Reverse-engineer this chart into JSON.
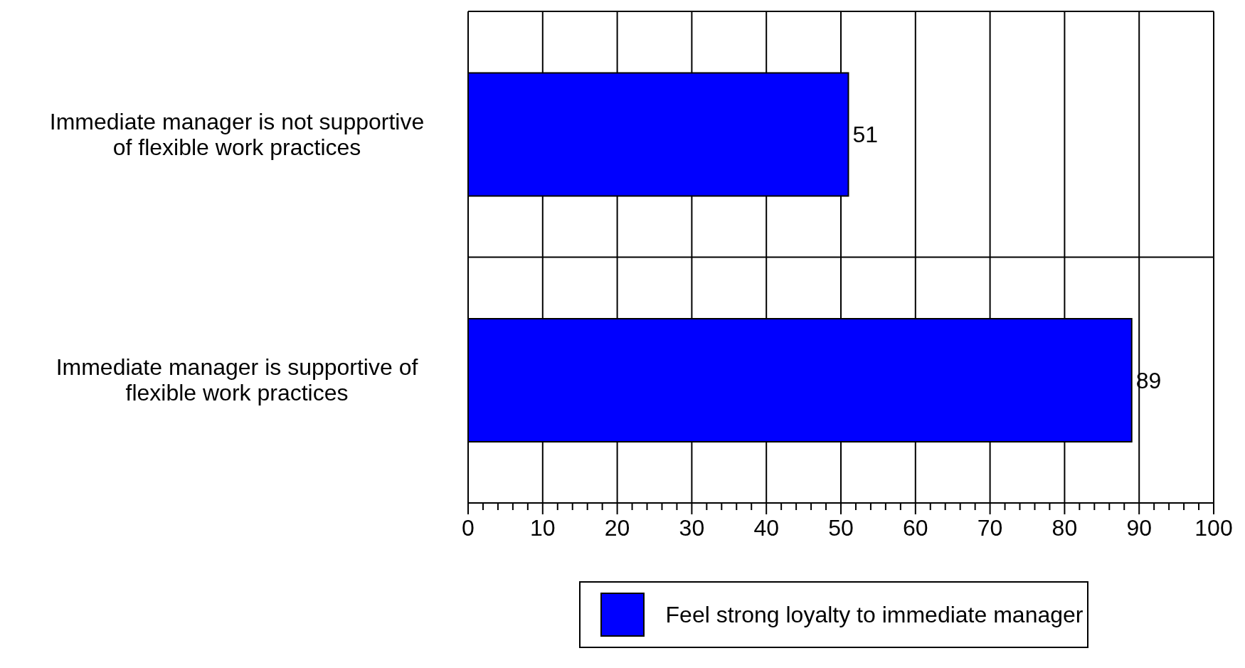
{
  "chart_data": {
    "type": "bar",
    "orientation": "horizontal",
    "categories": [
      "Immediate manager is not supportive of flexible work practices",
      "Immediate manager is supportive of flexible work practices"
    ],
    "series": [
      {
        "name": "Feel strong loyalty to immediate manager",
        "color": "#0000ff",
        "values": [
          51,
          89
        ]
      }
    ],
    "xlim": [
      0,
      100
    ],
    "xticks": [
      0,
      {
        "value": 2,
        "label": null
      },
      {
        "value": 4,
        "label": null
      },
      {
        "value": 6,
        "label": null
      },
      {
        "value": 8,
        "label": null
      },
      10,
      {
        "value": 12,
        "label": null
      },
      {
        "value": 14,
        "label": null
      },
      {
        "value": 16,
        "label": null
      },
      {
        "value": 18,
        "label": null
      },
      20,
      {
        "value": 22,
        "label": null
      },
      {
        "value": 24,
        "label": null
      },
      {
        "value": 26,
        "label": null
      },
      {
        "value": 28,
        "label": null
      },
      30,
      {
        "value": 32,
        "label": null
      },
      {
        "value": 34,
        "label": null
      },
      {
        "value": 36,
        "label": null
      },
      {
        "value": 38,
        "label": null
      },
      40,
      {
        "value": 42,
        "label": null
      },
      {
        "value": 44,
        "label": null
      },
      {
        "value": 46,
        "label": null
      },
      {
        "value": 48,
        "label": null
      },
      50,
      {
        "value": 52,
        "label": null
      },
      {
        "value": 54,
        "label": null
      },
      {
        "value": 56,
        "label": null
      },
      {
        "value": 58,
        "label": null
      },
      60,
      {
        "value": 62,
        "label": null
      },
      {
        "value": 64,
        "label": null
      },
      {
        "value": 66,
        "label": null
      },
      {
        "value": 68,
        "label": null
      },
      70,
      {
        "value": 72,
        "label": null
      },
      {
        "value": 74,
        "label": null
      },
      {
        "value": 76,
        "label": null
      },
      {
        "value": 78,
        "label": null
      },
      80,
      {
        "value": 82,
        "label": null
      },
      {
        "value": 84,
        "label": null
      },
      {
        "value": 86,
        "label": null
      },
      {
        "value": 88,
        "label": null
      },
      90,
      {
        "value": 92,
        "label": null
      },
      {
        "value": 94,
        "label": null
      },
      {
        "value": 96,
        "label": null
      },
      {
        "value": 98,
        "label": null
      },
      100
    ],
    "grid": true,
    "data_labels": true,
    "legend": "bottom"
  }
}
